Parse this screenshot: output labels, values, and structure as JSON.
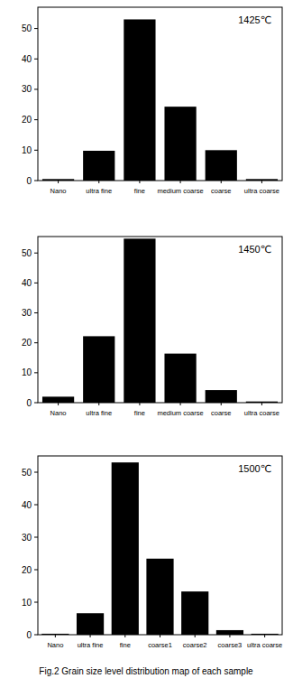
{
  "chart_data": [
    {
      "type": "bar",
      "title": "1425℃",
      "categories": [
        "Nano",
        "ultra fine",
        "fine",
        "medium coarse",
        "coarse",
        "ultra coarse"
      ],
      "values": [
        0.5,
        9.8,
        53,
        24.3,
        10,
        0.5
      ],
      "color": "#000000",
      "ylim": [
        0,
        57
      ],
      "yticks": [
        0,
        10,
        20,
        30,
        40,
        50
      ],
      "grid": false
    },
    {
      "type": "bar",
      "title": "1450℃",
      "categories": [
        "Nano",
        "ultra fine",
        "fine",
        "medium coarse",
        "coarse",
        "ultra coarse"
      ],
      "values": [
        2,
        22.2,
        54.8,
        16.4,
        4.2,
        0.4
      ],
      "color": "#000000",
      "ylim": [
        0,
        55.5
      ],
      "yticks": [
        0,
        10,
        20,
        30,
        40,
        50
      ],
      "grid": false
    },
    {
      "type": "bar",
      "title": "1500℃",
      "categories": [
        "Nano",
        "ultra fine",
        "fine",
        "coarse1",
        "coarse2",
        "coarse3",
        "ultra coarse"
      ],
      "values": [
        0.3,
        6.6,
        53,
        23.4,
        13.3,
        1.4,
        0.3
      ],
      "color": "#000000",
      "ylim": [
        0,
        55
      ],
      "yticks": [
        0,
        10,
        20,
        30,
        40,
        50
      ],
      "grid": false
    }
  ],
  "caption": "Fig.2 Grain size level distribution map of each sample"
}
